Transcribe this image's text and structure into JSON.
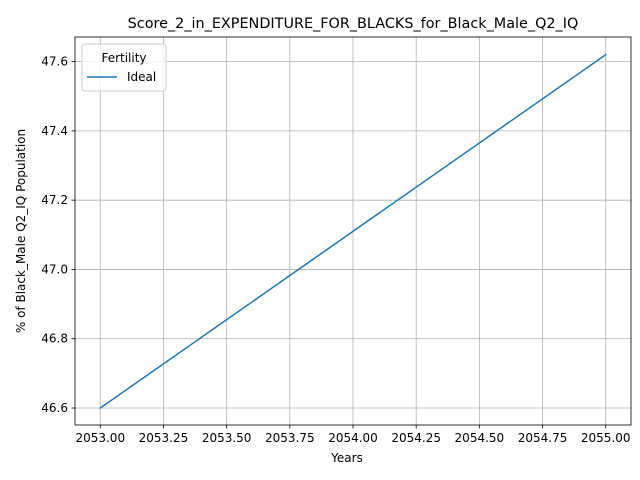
{
  "chart_data": {
    "type": "line",
    "title": "Score_2_in_EXPENDITURE_FOR_BLACKS_for_Black_Male_Q2_IQ",
    "xlabel": "Years",
    "ylabel": "% of Black_Male Q2_IQ Population",
    "xlim": [
      2052.9,
      2055.1
    ],
    "ylim": [
      46.551,
      47.671
    ],
    "x_ticks": [
      "2053.00",
      "2053.25",
      "2053.50",
      "2053.75",
      "2054.00",
      "2054.25",
      "2054.50",
      "2054.75",
      "2055.00"
    ],
    "x_tick_values": [
      2053.0,
      2053.25,
      2053.5,
      2053.75,
      2054.0,
      2054.25,
      2054.5,
      2054.75,
      2055.0
    ],
    "y_ticks": [
      "46.6",
      "46.8",
      "47.0",
      "47.2",
      "47.4",
      "47.6"
    ],
    "y_tick_values": [
      46.6,
      46.8,
      47.0,
      47.2,
      47.4,
      47.6
    ],
    "grid": true,
    "legend": {
      "title": "Fertility",
      "placement": "top-left"
    },
    "series": [
      {
        "name": "Ideal",
        "color": "#1f77b4",
        "x": [
          2053,
          2055
        ],
        "y": [
          46.6,
          47.62
        ]
      }
    ]
  }
}
